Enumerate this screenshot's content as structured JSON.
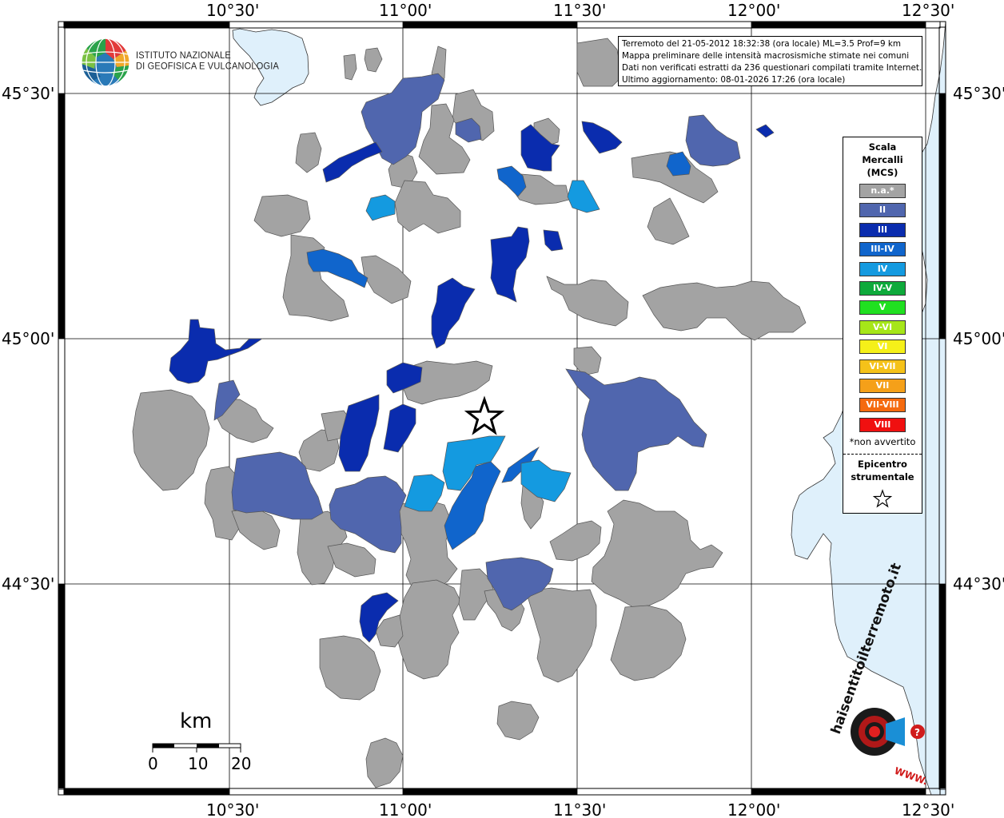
{
  "map": {
    "type": "macroseismic-intensity-map",
    "projection": "lat-lon",
    "lon_range": [
      "10°10'",
      "12°30'"
    ],
    "lat_range": [
      "44°09'",
      "45°39'"
    ],
    "graticule": {
      "lon_labels": [
        "10°30'",
        "11°00'",
        "11°30'",
        "12°00'",
        "12°30'"
      ],
      "lat_labels": [
        "45°30'",
        "45°00'",
        "44°30'"
      ]
    },
    "epicenter": {
      "lon": 11.23,
      "lat": 44.83,
      "symbol": "star"
    },
    "colors": {
      "na": "#a3a3a3",
      "II": "#5066ae",
      "III": "#0a2cae",
      "III-IV": "#1065cc",
      "IV": "#149ae0",
      "sea": "#dff0fb",
      "lake": "#dff0fb"
    }
  },
  "header": {
    "logo_name": "globe-logo-icon",
    "institute_line1": "ISTITUTO NAZIONALE",
    "institute_line2": "DI GEOFISICA E VULCANOLOGIA"
  },
  "info": {
    "line1": "Terremoto del 21-05-2012 18:32:38 (ora locale) ML=3.5 Prof=9 km",
    "line2": "Mappa preliminare delle intensità macrosismiche stimate nei comuni",
    "line3": "Dati non verificati estratti da 236 questionari compilati tramite Internet.",
    "line4": "Ultimo aggiornamento: 08-01-2026 17:26 (ora locale)"
  },
  "legend": {
    "title_line1": "Scala",
    "title_line2": "Mercalli",
    "title_line3": "(MCS)",
    "items": [
      {
        "label": "n.a.*",
        "color": "#a3a3a3"
      },
      {
        "label": "II",
        "color": "#5066ae"
      },
      {
        "label": "III",
        "color": "#0a2cae"
      },
      {
        "label": "III-IV",
        "color": "#1065cc"
      },
      {
        "label": "IV",
        "color": "#149ae0"
      },
      {
        "label": "IV-V",
        "color": "#0eaa3b"
      },
      {
        "label": "V",
        "color": "#20e020"
      },
      {
        "label": "V-VI",
        "color": "#a6e619"
      },
      {
        "label": "VI",
        "color": "#f5f019"
      },
      {
        "label": "VI-VII",
        "color": "#f5c219"
      },
      {
        "label": "VII",
        "color": "#f5a019"
      },
      {
        "label": "VII-VIII",
        "color": "#f56a0f"
      },
      {
        "label": "VIII",
        "color": "#f01010"
      }
    ],
    "note": "*non avvertito",
    "epicenter_line1": "Epicentro",
    "epicenter_line2": "strumentale"
  },
  "scalebar": {
    "unit": "km",
    "ticks": [
      "0",
      "10",
      "20"
    ]
  },
  "watermark": {
    "text": "haisentitoilterremoto.it",
    "url_text": "WWW."
  }
}
